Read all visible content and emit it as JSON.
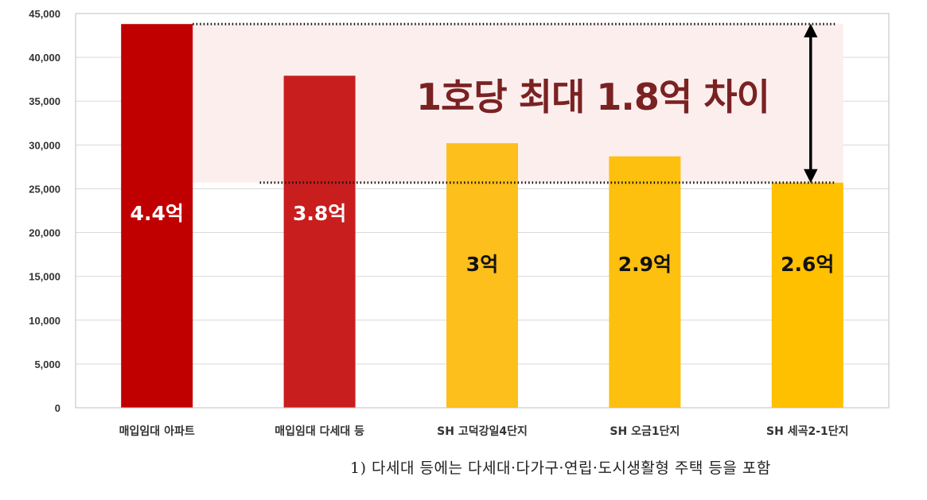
{
  "chart_data": {
    "type": "bar",
    "categories": [
      "매입임대 아파트",
      "매입임대 다세대 등",
      "SH 고덕강일4단지",
      "SH 오금1단지",
      "SH 세곡2-1단지"
    ],
    "values": [
      43800,
      37900,
      30200,
      28700,
      25700
    ],
    "data_labels": [
      "4.4억",
      "3.8억",
      "3억",
      "2.9억",
      "2.6억"
    ],
    "bar_colors": [
      "#c00000",
      "#c81e1e",
      "#fdbf1c",
      "#fdc00f",
      "#ffc000"
    ],
    "label_colors": [
      "#ffffff",
      "#ffffff",
      "#111111",
      "#111111",
      "#111111"
    ],
    "y_ticks": [
      "0",
      "5,000",
      "10,000",
      "15,000",
      "20,000",
      "25,000",
      "30,000",
      "35,000",
      "40,000",
      "45,000"
    ],
    "ylim": [
      0,
      45000
    ],
    "grid": true,
    "annotation": {
      "text": "1호당 최대 1.8억 차이",
      "from_value": 43800,
      "to_value": 25700,
      "shade_color": "#fdeeee",
      "text_color": "#7a2222"
    }
  },
  "footnote": "1) 다세대 등에는 다세대·다가구·연립·도시생활형 주택 등을 포함"
}
